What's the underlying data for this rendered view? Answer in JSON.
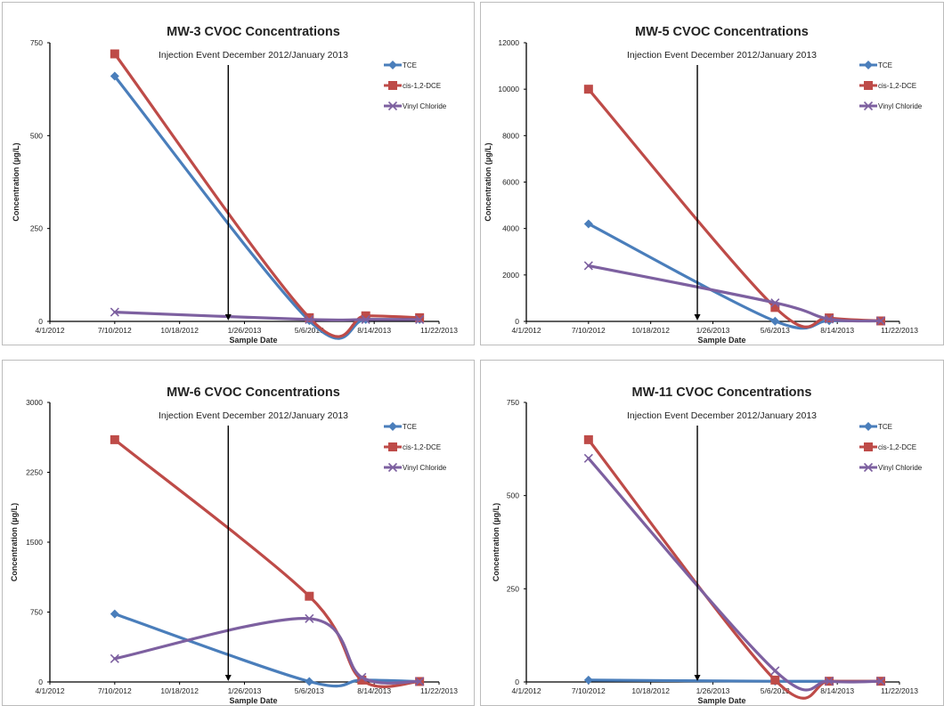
{
  "chart_data": [
    {
      "type": "line",
      "title": "MW-3  CVOC Concentrations",
      "xlabel": "Sample Date",
      "ylabel": "Concentration (µg/L)",
      "x_ticks": [
        "4/1/2012",
        "7/10/2012",
        "10/18/2012",
        "1/26/2013",
        "5/6/2013",
        "8/14/2013",
        "11/22/2013"
      ],
      "y_ticks": [
        0,
        250,
        500,
        750
      ],
      "ylim": [
        0,
        750
      ],
      "annotation": "Injection Event December 2012/January 2013",
      "legend_position": "top-right",
      "series": [
        {
          "name": "TCE",
          "color": "#4a7ebb",
          "marker": "diamond",
          "x": [
            "2012-07-10",
            "2013-05-06",
            "2013-08-01",
            "2013-10-23"
          ],
          "values": [
            660,
            2,
            5,
            5
          ]
        },
        {
          "name": "cis-1,2-DCE",
          "color": "#be4b48",
          "marker": "square",
          "x": [
            "2012-07-10",
            "2013-05-06",
            "2013-08-01",
            "2013-10-23"
          ],
          "values": [
            720,
            10,
            15,
            10
          ]
        },
        {
          "name": "Vinyl Chloride",
          "color": "#7d60a0",
          "marker": "x",
          "x": [
            "2012-07-10",
            "2013-05-06",
            "2013-08-01",
            "2013-10-23"
          ],
          "values": [
            25,
            5,
            5,
            5
          ]
        }
      ]
    },
    {
      "type": "line",
      "title": "MW-5  CVOC Concentrations",
      "xlabel": "Sample Date",
      "ylabel": "Concentration (µg/L)",
      "x_ticks": [
        "4/1/2012",
        "7/10/2012",
        "10/18/2012",
        "1/26/2013",
        "5/6/2013",
        "8/14/2013",
        "11/22/2013"
      ],
      "y_ticks": [
        0,
        2000,
        4000,
        6000,
        8000,
        10000,
        12000
      ],
      "ylim": [
        0,
        12000
      ],
      "annotation": "Injection Event December 2012/January 2013",
      "legend_position": "top-right",
      "series": [
        {
          "name": "TCE",
          "color": "#4a7ebb",
          "marker": "diamond",
          "x": [
            "2012-07-10",
            "2013-05-06",
            "2013-08-01",
            "2013-10-23"
          ],
          "values": [
            4200,
            10,
            30,
            20
          ]
        },
        {
          "name": "cis-1,2-DCE",
          "color": "#be4b48",
          "marker": "square",
          "x": [
            "2012-07-10",
            "2013-05-06",
            "2013-08-01",
            "2013-10-23"
          ],
          "values": [
            10000,
            600,
            150,
            20
          ]
        },
        {
          "name": "Vinyl Chloride",
          "color": "#7d60a0",
          "marker": "x",
          "x": [
            "2012-07-10",
            "2013-05-06",
            "2013-08-01",
            "2013-10-23"
          ],
          "values": [
            2400,
            800,
            100,
            20
          ]
        }
      ]
    },
    {
      "type": "line",
      "title": "MW-6  CVOC Concentrations",
      "xlabel": "Sample Date",
      "ylabel": "Concentration (µg/L)",
      "x_ticks": [
        "4/1/2012",
        "7/10/2012",
        "10/18/2012",
        "1/26/2013",
        "5/6/2013",
        "8/14/2013",
        "11/22/2013"
      ],
      "y_ticks": [
        0,
        750,
        1500,
        2250,
        3000
      ],
      "ylim": [
        0,
        3000
      ],
      "annotation": "Injection Event December 2012/January 2013",
      "legend_position": "top-right",
      "series": [
        {
          "name": "TCE",
          "color": "#4a7ebb",
          "marker": "diamond",
          "x": [
            "2012-07-10",
            "2013-05-06",
            "2013-07-26",
            "2013-10-23"
          ],
          "values": [
            730,
            5,
            20,
            5
          ]
        },
        {
          "name": "cis-1,2-DCE",
          "color": "#be4b48",
          "marker": "square",
          "x": [
            "2012-07-10",
            "2013-05-06",
            "2013-07-26",
            "2013-10-23"
          ],
          "values": [
            2600,
            920,
            20,
            5
          ]
        },
        {
          "name": "Vinyl Chloride",
          "color": "#7d60a0",
          "marker": "x",
          "x": [
            "2012-07-10",
            "2013-05-06",
            "2013-07-26",
            "2013-10-23"
          ],
          "values": [
            250,
            680,
            50,
            5
          ]
        }
      ]
    },
    {
      "type": "line",
      "title": "MW-11  CVOC Concentrations",
      "xlabel": "Sample Date",
      "ylabel": "Concentration (µg/L)",
      "x_ticks": [
        "4/1/2012",
        "7/10/2012",
        "10/18/2012",
        "1/26/2013",
        "5/6/2013",
        "8/14/2013",
        "11/22/2013"
      ],
      "y_ticks": [
        0,
        250,
        500,
        750
      ],
      "ylim": [
        0,
        750
      ],
      "annotation": "Injection Event December 2012/January 2013",
      "legend_position": "top-right",
      "series": [
        {
          "name": "TCE",
          "color": "#4a7ebb",
          "marker": "diamond",
          "x": [
            "2012-07-10",
            "2013-05-06",
            "2013-08-01",
            "2013-10-23"
          ],
          "values": [
            5,
            2,
            2,
            2
          ]
        },
        {
          "name": "cis-1,2-DCE",
          "color": "#be4b48",
          "marker": "square",
          "x": [
            "2012-07-10",
            "2013-05-06",
            "2013-08-01",
            "2013-10-23"
          ],
          "values": [
            650,
            5,
            2,
            2
          ]
        },
        {
          "name": "Vinyl Chloride",
          "color": "#7d60a0",
          "marker": "x",
          "x": [
            "2012-07-10",
            "2013-05-06",
            "2013-08-01",
            "2013-10-23"
          ],
          "values": [
            600,
            30,
            2,
            2
          ]
        }
      ]
    }
  ]
}
